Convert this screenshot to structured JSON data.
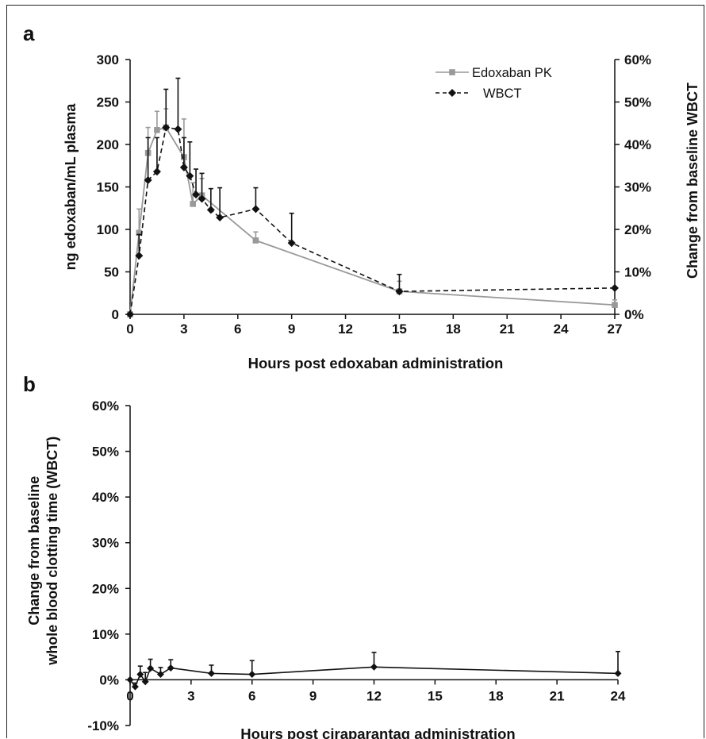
{
  "chart_data": [
    {
      "panel_label": "a",
      "type": "line",
      "xlabel": "Hours post edoxaban administration",
      "ylabel": "ng edoxaban/mL plasma",
      "y2label": "Change from baseline WBCT",
      "xlim": [
        0,
        27
      ],
      "ylim": [
        0,
        300
      ],
      "y2lim": [
        0,
        60
      ],
      "xticks": [
        "0",
        "3",
        "6",
        "9",
        "12",
        "15",
        "18",
        "21",
        "24",
        "27"
      ],
      "yticks": [
        "0",
        "50",
        "100",
        "150",
        "200",
        "250",
        "300"
      ],
      "y2ticks": [
        "0%",
        "10%",
        "20%",
        "30%",
        "40%",
        "50%",
        "60%"
      ],
      "grid": false,
      "legend_position": "top-right",
      "series": [
        {
          "name": "Edoxaban PK",
          "axis": "left",
          "color": "#999999",
          "line": "solid",
          "marker": "square",
          "x": [
            0,
            0.5,
            1,
            1.5,
            2,
            3,
            3.5,
            4,
            7,
            15,
            27
          ],
          "y": [
            0,
            96,
            190,
            217,
            220,
            185,
            130,
            140,
            87,
            27,
            11
          ],
          "err": [
            0,
            28,
            30,
            22,
            22,
            45,
            25,
            20,
            10,
            12,
            6
          ]
        },
        {
          "name": "WBCT",
          "axis": "right",
          "color": "#111111",
          "line": "dashed",
          "marker": "diamond",
          "x": [
            0,
            0.5,
            1,
            1.5,
            2,
            2.67,
            3,
            3.33,
            3.67,
            4,
            4.5,
            5,
            7,
            9,
            15,
            27
          ],
          "y": [
            0,
            13.8,
            31.6,
            33.6,
            44,
            43.6,
            34.6,
            32.6,
            28.2,
            27.2,
            24.6,
            22.8,
            24.8,
            16.8,
            5.4,
            6.2
          ],
          "err": [
            0,
            5,
            10,
            8,
            9,
            12,
            7,
            8,
            6,
            6,
            5,
            7,
            5,
            7,
            4,
            0
          ]
        }
      ]
    },
    {
      "panel_label": "b",
      "type": "line",
      "xlabel": "Hours post ciraparantag administration",
      "ylabel_lines": [
        "Change from baseline",
        "whole blood clotting time (WBCT)"
      ],
      "xlim": [
        0,
        24
      ],
      "ylim": [
        -10,
        60
      ],
      "xticks": [
        "0",
        "3",
        "6",
        "9",
        "12",
        "15",
        "18",
        "21",
        "24"
      ],
      "yticks": [
        "-10%",
        "0%",
        "10%",
        "20%",
        "30%",
        "40%",
        "50%",
        "60%"
      ],
      "grid": false,
      "series": [
        {
          "name": "",
          "color": "#111111",
          "line": "solid",
          "marker": "diamond",
          "x": [
            0,
            0.25,
            0.5,
            0.75,
            1,
            1.5,
            2,
            4,
            6,
            12,
            24
          ],
          "y": [
            0,
            -1.5,
            1.2,
            -0.4,
            2.5,
            1.2,
            2.6,
            1.4,
            1.2,
            2.8,
            1.4
          ],
          "err": [
            0,
            0.8,
            1.8,
            2.0,
            2.0,
            1.5,
            1.8,
            1.8,
            3.0,
            3.2,
            4.8
          ]
        }
      ]
    }
  ],
  "legend": {
    "entries": [
      "Edoxaban PK",
      "WBCT"
    ]
  }
}
